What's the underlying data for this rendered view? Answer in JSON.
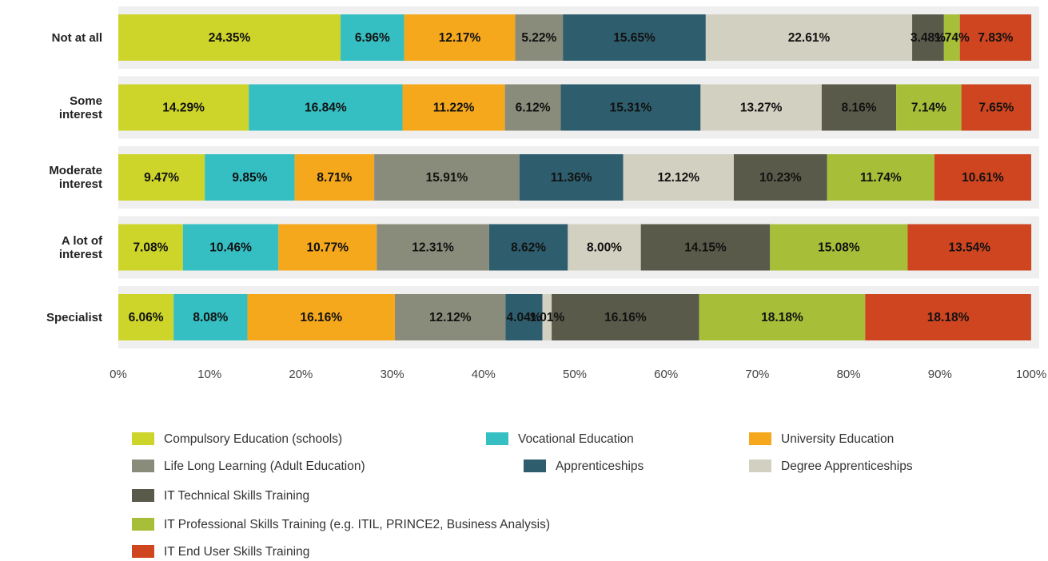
{
  "chart_data": {
    "type": "stacked-bar-horizontal",
    "categories": [
      "Not at all",
      "Some interest",
      "Moderate interest",
      "A lot of interest",
      "Specialist"
    ],
    "xlim": [
      0,
      100
    ],
    "xticks": [
      {
        "value": 0,
        "label": "0%"
      },
      {
        "value": 10,
        "label": "10%"
      },
      {
        "value": 20,
        "label": "20%"
      },
      {
        "value": 30,
        "label": "30%"
      },
      {
        "value": 40,
        "label": "40%"
      },
      {
        "value": 50,
        "label": "50%"
      },
      {
        "value": 60,
        "label": "60%"
      },
      {
        "value": 70,
        "label": "70%"
      },
      {
        "value": 80,
        "label": "80%"
      },
      {
        "value": 90,
        "label": "90%"
      },
      {
        "value": 100,
        "label": "100%"
      }
    ],
    "series": [
      {
        "name": "Compulsory Education (schools)",
        "color": "#cdd42a",
        "values": [
          24.35,
          14.29,
          9.47,
          7.08,
          6.06
        ],
        "value_labels": [
          "24.35%",
          "14.29%",
          "9.47%",
          "7.08%",
          "6.06%"
        ]
      },
      {
        "name": "Vocational Education",
        "color": "#35bfc3",
        "values": [
          6.96,
          16.84,
          9.85,
          10.46,
          8.08
        ],
        "value_labels": [
          "6.96%",
          "16.84%",
          "9.85%",
          "10.46%",
          "8.08%"
        ]
      },
      {
        "name": "University Education",
        "color": "#f5a81c",
        "values": [
          12.17,
          11.22,
          8.71,
          10.77,
          16.16
        ],
        "value_labels": [
          "12.17%",
          "11.22%",
          "8.71%",
          "10.77%",
          "16.16%"
        ]
      },
      {
        "name": "Life Long Learning (Adult Education)",
        "color": "#8a8c7b",
        "values": [
          5.22,
          6.12,
          15.91,
          12.31,
          12.12
        ],
        "value_labels": [
          "5.22%",
          "6.12%",
          "15.91%",
          "12.31%",
          "12.12%"
        ]
      },
      {
        "name": "Apprenticeships",
        "color": "#2e5e6e",
        "values": [
          15.65,
          15.31,
          11.36,
          8.62,
          4.04
        ],
        "value_labels": [
          "15.65%",
          "15.31%",
          "11.36%",
          "8.62%",
          "4.04%"
        ]
      },
      {
        "name": "Degree Apprenticeships",
        "color": "#d2d0c1",
        "values": [
          22.61,
          13.27,
          12.12,
          8.0,
          1.01
        ],
        "value_labels": [
          "22.61%",
          "13.27%",
          "12.12%",
          "8.00%",
          "1.01%"
        ]
      },
      {
        "name": "IT Technical Skills Training",
        "color": "#5a5a4a",
        "values": [
          3.48,
          8.16,
          10.23,
          14.15,
          16.16
        ],
        "value_labels": [
          "3.48%",
          "8.16%",
          "10.23%",
          "14.15%",
          "16.16%"
        ]
      },
      {
        "name": "IT Professional Skills Training (e.g. ITIL, PRINCE2, Business Analysis)",
        "color": "#a7bf38",
        "values": [
          1.74,
          7.14,
          11.74,
          15.08,
          18.18
        ],
        "value_labels": [
          "1.74%",
          "7.14%",
          "11.74%",
          "15.08%",
          "18.18%"
        ]
      },
      {
        "name": "IT End User Skills Training",
        "color": "#cf4520",
        "values": [
          7.83,
          7.65,
          10.61,
          13.54,
          18.18
        ],
        "value_labels": [
          "7.83%",
          "7.65%",
          "10.61%",
          "13.54%",
          "18.18%"
        ]
      }
    ]
  }
}
